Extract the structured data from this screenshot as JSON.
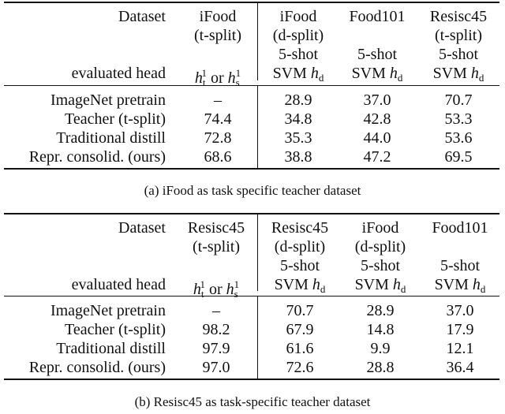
{
  "tables": [
    {
      "caption": "(a) iFood as task specific teacher dataset",
      "header": {
        "dataset_label": "Dataset",
        "evaluated_head_label": "evaluated head",
        "columns": [
          {
            "name": "iFood",
            "split": "(t-split)",
            "shot": "",
            "head": "h_t^1 or h_s^1"
          },
          {
            "name": "iFood",
            "split": "(d-split)",
            "shot": "5-shot",
            "head": "SVM h_d"
          },
          {
            "name": "Food101",
            "split": "",
            "shot": "5-shot",
            "head": "SVM h_d"
          },
          {
            "name": "Resisc45",
            "split": "(t-split)",
            "shot": "5-shot",
            "head": "SVM h_d"
          }
        ]
      },
      "rows": [
        {
          "label": "ImageNet pretrain",
          "values": [
            "–",
            "28.9",
            "37.0",
            "70.7"
          ]
        },
        {
          "label": "Teacher (t-split)",
          "values": [
            "74.4",
            "34.8",
            "42.8",
            "53.3"
          ]
        },
        {
          "label": "Traditional distill",
          "values": [
            "72.8",
            "35.3",
            "44.0",
            "53.6"
          ]
        },
        {
          "label": "Repr. consolid. (ours)",
          "values": [
            "68.6",
            "38.8",
            "47.2",
            "69.5"
          ]
        }
      ]
    },
    {
      "caption": "(b) Resisc45 as task-specific teacher dataset",
      "header": {
        "dataset_label": "Dataset",
        "evaluated_head_label": "evaluated head",
        "columns": [
          {
            "name": "Resisc45",
            "split": "(t-split)",
            "shot": "",
            "head": "h_t^1 or h_s^1"
          },
          {
            "name": "Resisc45",
            "split": "(d-split)",
            "shot": "5-shot",
            "head": "SVM h_d"
          },
          {
            "name": "iFood",
            "split": "(d-split)",
            "shot": "5-shot",
            "head": "SVM h_d"
          },
          {
            "name": "Food101",
            "split": "",
            "shot": "5-shot",
            "head": "SVM h_d"
          }
        ]
      },
      "rows": [
        {
          "label": "ImageNet pretrain",
          "values": [
            "–",
            "70.7",
            "28.9",
            "37.0"
          ]
        },
        {
          "label": "Teacher (t-split)",
          "values": [
            "98.2",
            "67.9",
            "14.8",
            "17.9"
          ]
        },
        {
          "label": "Traditional distill",
          "values": [
            "97.9",
            "61.6",
            "9.9",
            "12.1"
          ]
        },
        {
          "label": "Repr. consolid. (ours)",
          "values": [
            "97.0",
            "72.6",
            "28.8",
            "36.4"
          ]
        }
      ]
    }
  ],
  "math": {
    "h": "h",
    "sub_t": "t",
    "sub_s": "s",
    "sub_d": "d",
    "sup_1": "1",
    "or": "or",
    "svm": "SVM"
  }
}
